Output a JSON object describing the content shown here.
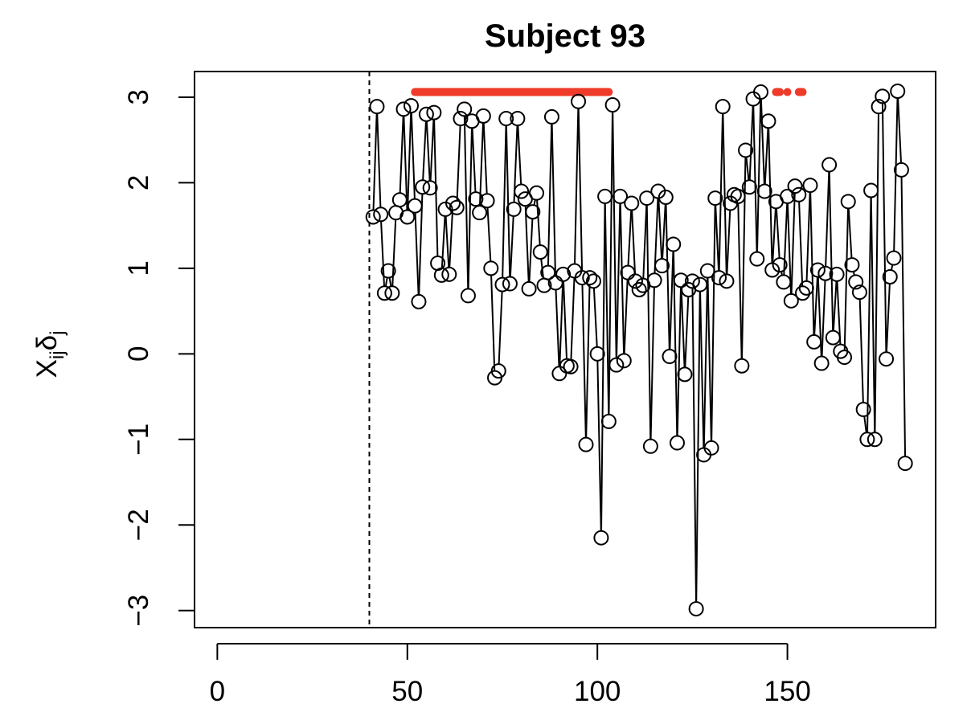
{
  "chart_data": {
    "type": "line",
    "title": "Subject 93",
    "ylabel": {
      "base": "X",
      "sub1": "ij",
      "mid": "δ",
      "sub2": "j"
    },
    "xlabel": "",
    "xlim": [
      -6,
      189
    ],
    "ylim": [
      -3.2,
      3.3
    ],
    "x_ticks": [
      0,
      50,
      100,
      150
    ],
    "y_ticks": [
      -3,
      -2,
      -1,
      0,
      1,
      2,
      3
    ],
    "y_tick_labels": [
      "−3",
      "−2",
      "−1",
      "0",
      "1",
      "2",
      "3"
    ],
    "x_tick_labels": [
      "0",
      "50",
      "100",
      "150"
    ],
    "vline_x": 40,
    "series": [
      {
        "marker": "open-circle",
        "color": "#000000",
        "x_start": 41,
        "values": [
          1.6,
          2.89,
          1.63,
          0.71,
          0.97,
          0.71,
          1.65,
          1.8,
          2.86,
          1.6,
          2.9,
          1.73,
          0.61,
          1.95,
          2.8,
          1.94,
          2.82,
          1.06,
          0.92,
          1.69,
          0.93,
          1.76,
          1.71,
          2.75,
          2.86,
          0.68,
          2.72,
          1.81,
          1.65,
          2.78,
          1.79,
          1.0,
          -0.28,
          -0.2,
          0.81,
          2.75,
          0.82,
          1.69,
          2.75,
          1.9,
          1.81,
          0.76,
          1.66,
          1.88,
          1.19,
          0.8,
          0.95,
          2.77,
          0.83,
          -0.23,
          0.93,
          -0.14,
          -0.15,
          0.97,
          2.95,
          0.89,
          -1.06,
          0.89,
          0.85,
          0.0,
          -2.15,
          1.84,
          -0.79,
          2.91,
          -0.13,
          1.84,
          -0.08,
          0.95,
          1.76,
          0.85,
          0.75,
          0.8,
          1.82,
          -1.08,
          0.86,
          1.9,
          1.03,
          1.83,
          -0.03,
          1.28,
          -1.04,
          0.86,
          -0.24,
          0.75,
          0.85,
          -2.98,
          0.81,
          -1.18,
          0.97,
          -1.1,
          1.82,
          0.89,
          2.89,
          0.85,
          1.76,
          1.86,
          1.84,
          -0.14,
          2.38,
          1.95,
          2.98,
          1.11,
          3.06,
          1.9,
          2.72,
          0.98,
          1.78,
          1.04,
          0.84,
          1.84,
          0.62,
          1.96,
          1.86,
          0.71,
          0.77,
          1.97,
          0.14,
          0.98,
          -0.11,
          0.94,
          2.21,
          0.19,
          0.93,
          0.03,
          -0.04,
          1.78,
          1.04,
          0.84,
          0.72,
          -0.65,
          -1.0,
          1.91,
          -1.0,
          2.89,
          3.01,
          -0.06,
          0.9,
          1.12,
          3.07,
          2.15,
          -1.28
        ]
      }
    ],
    "highlight_segments": {
      "color": "#ee3b2a",
      "y": 3.06,
      "ranges": [
        [
          52,
          103
        ],
        [
          147,
          148
        ],
        [
          150,
          150
        ],
        [
          153,
          154
        ]
      ]
    }
  }
}
